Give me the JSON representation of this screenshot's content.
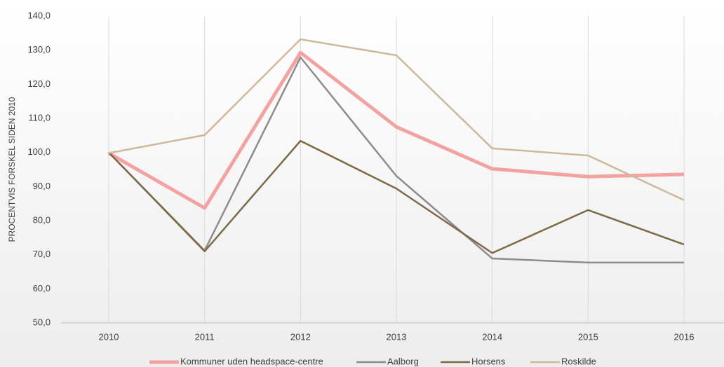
{
  "chart_data": {
    "type": "line",
    "y_label": "PROCENTVIS FORSKEL SIDEN 2010",
    "categories": [
      "2010",
      "2011",
      "2012",
      "2013",
      "2014",
      "2015",
      "2016"
    ],
    "series": [
      {
        "name": "Kommuner uden headspace-centre",
        "color": "#f2a3a1",
        "values": [
          99.8,
          83.7,
          129.3,
          107.5,
          95.2,
          92.9,
          93.6
        ]
      },
      {
        "name": "Aalborg",
        "color": "#8c8c8c",
        "values": [
          100,
          71.2,
          127.9,
          93.1,
          68.9,
          67.7,
          67.7
        ]
      },
      {
        "name": "Horsens",
        "color": "#7d6a45",
        "values": [
          100,
          71.0,
          103.4,
          89.4,
          70.5,
          83.1,
          73.0
        ]
      },
      {
        "name": "Roskilde",
        "color": "#cdb99a",
        "values": [
          99.8,
          105.1,
          133.2,
          128.5,
          101.2,
          99.1,
          86.0
        ]
      }
    ],
    "ylim": [
      50,
      140
    ],
    "yticks": [
      {
        "value": 50,
        "label": "50,0"
      },
      {
        "value": 60,
        "label": "60,0"
      },
      {
        "value": 70,
        "label": "70,0"
      },
      {
        "value": 80,
        "label": "80,0"
      },
      {
        "value": 90,
        "label": "90,0"
      },
      {
        "value": 100,
        "label": "100,0"
      },
      {
        "value": 110,
        "label": "110,0"
      },
      {
        "value": 120,
        "label": "120,0"
      },
      {
        "value": 130,
        "label": "130,0"
      },
      {
        "value": 140,
        "label": "140,0"
      }
    ],
    "grid": "x",
    "legend": "bottom"
  }
}
